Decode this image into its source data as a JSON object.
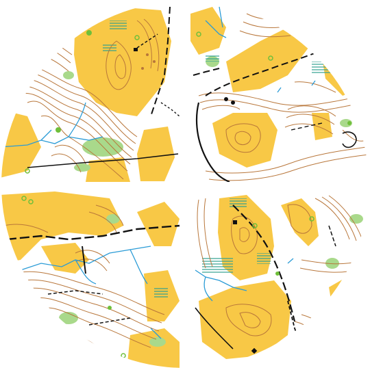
{
  "map": {
    "kind": "orienteering map in a circle split into four quadrants",
    "colors": {
      "background": "#ffffff",
      "open_land": "#f8c846",
      "contour": "#b8763a",
      "water": "#2a9bd6",
      "marsh": "#2f9f8f",
      "vegetation": "#a9d98b",
      "path": "#111111",
      "quadrant_gap": "#ffffff",
      "feature_point": "#6fbf3a"
    },
    "quadrants": [
      "top-left",
      "top-right",
      "bottom-left",
      "bottom-right"
    ]
  }
}
